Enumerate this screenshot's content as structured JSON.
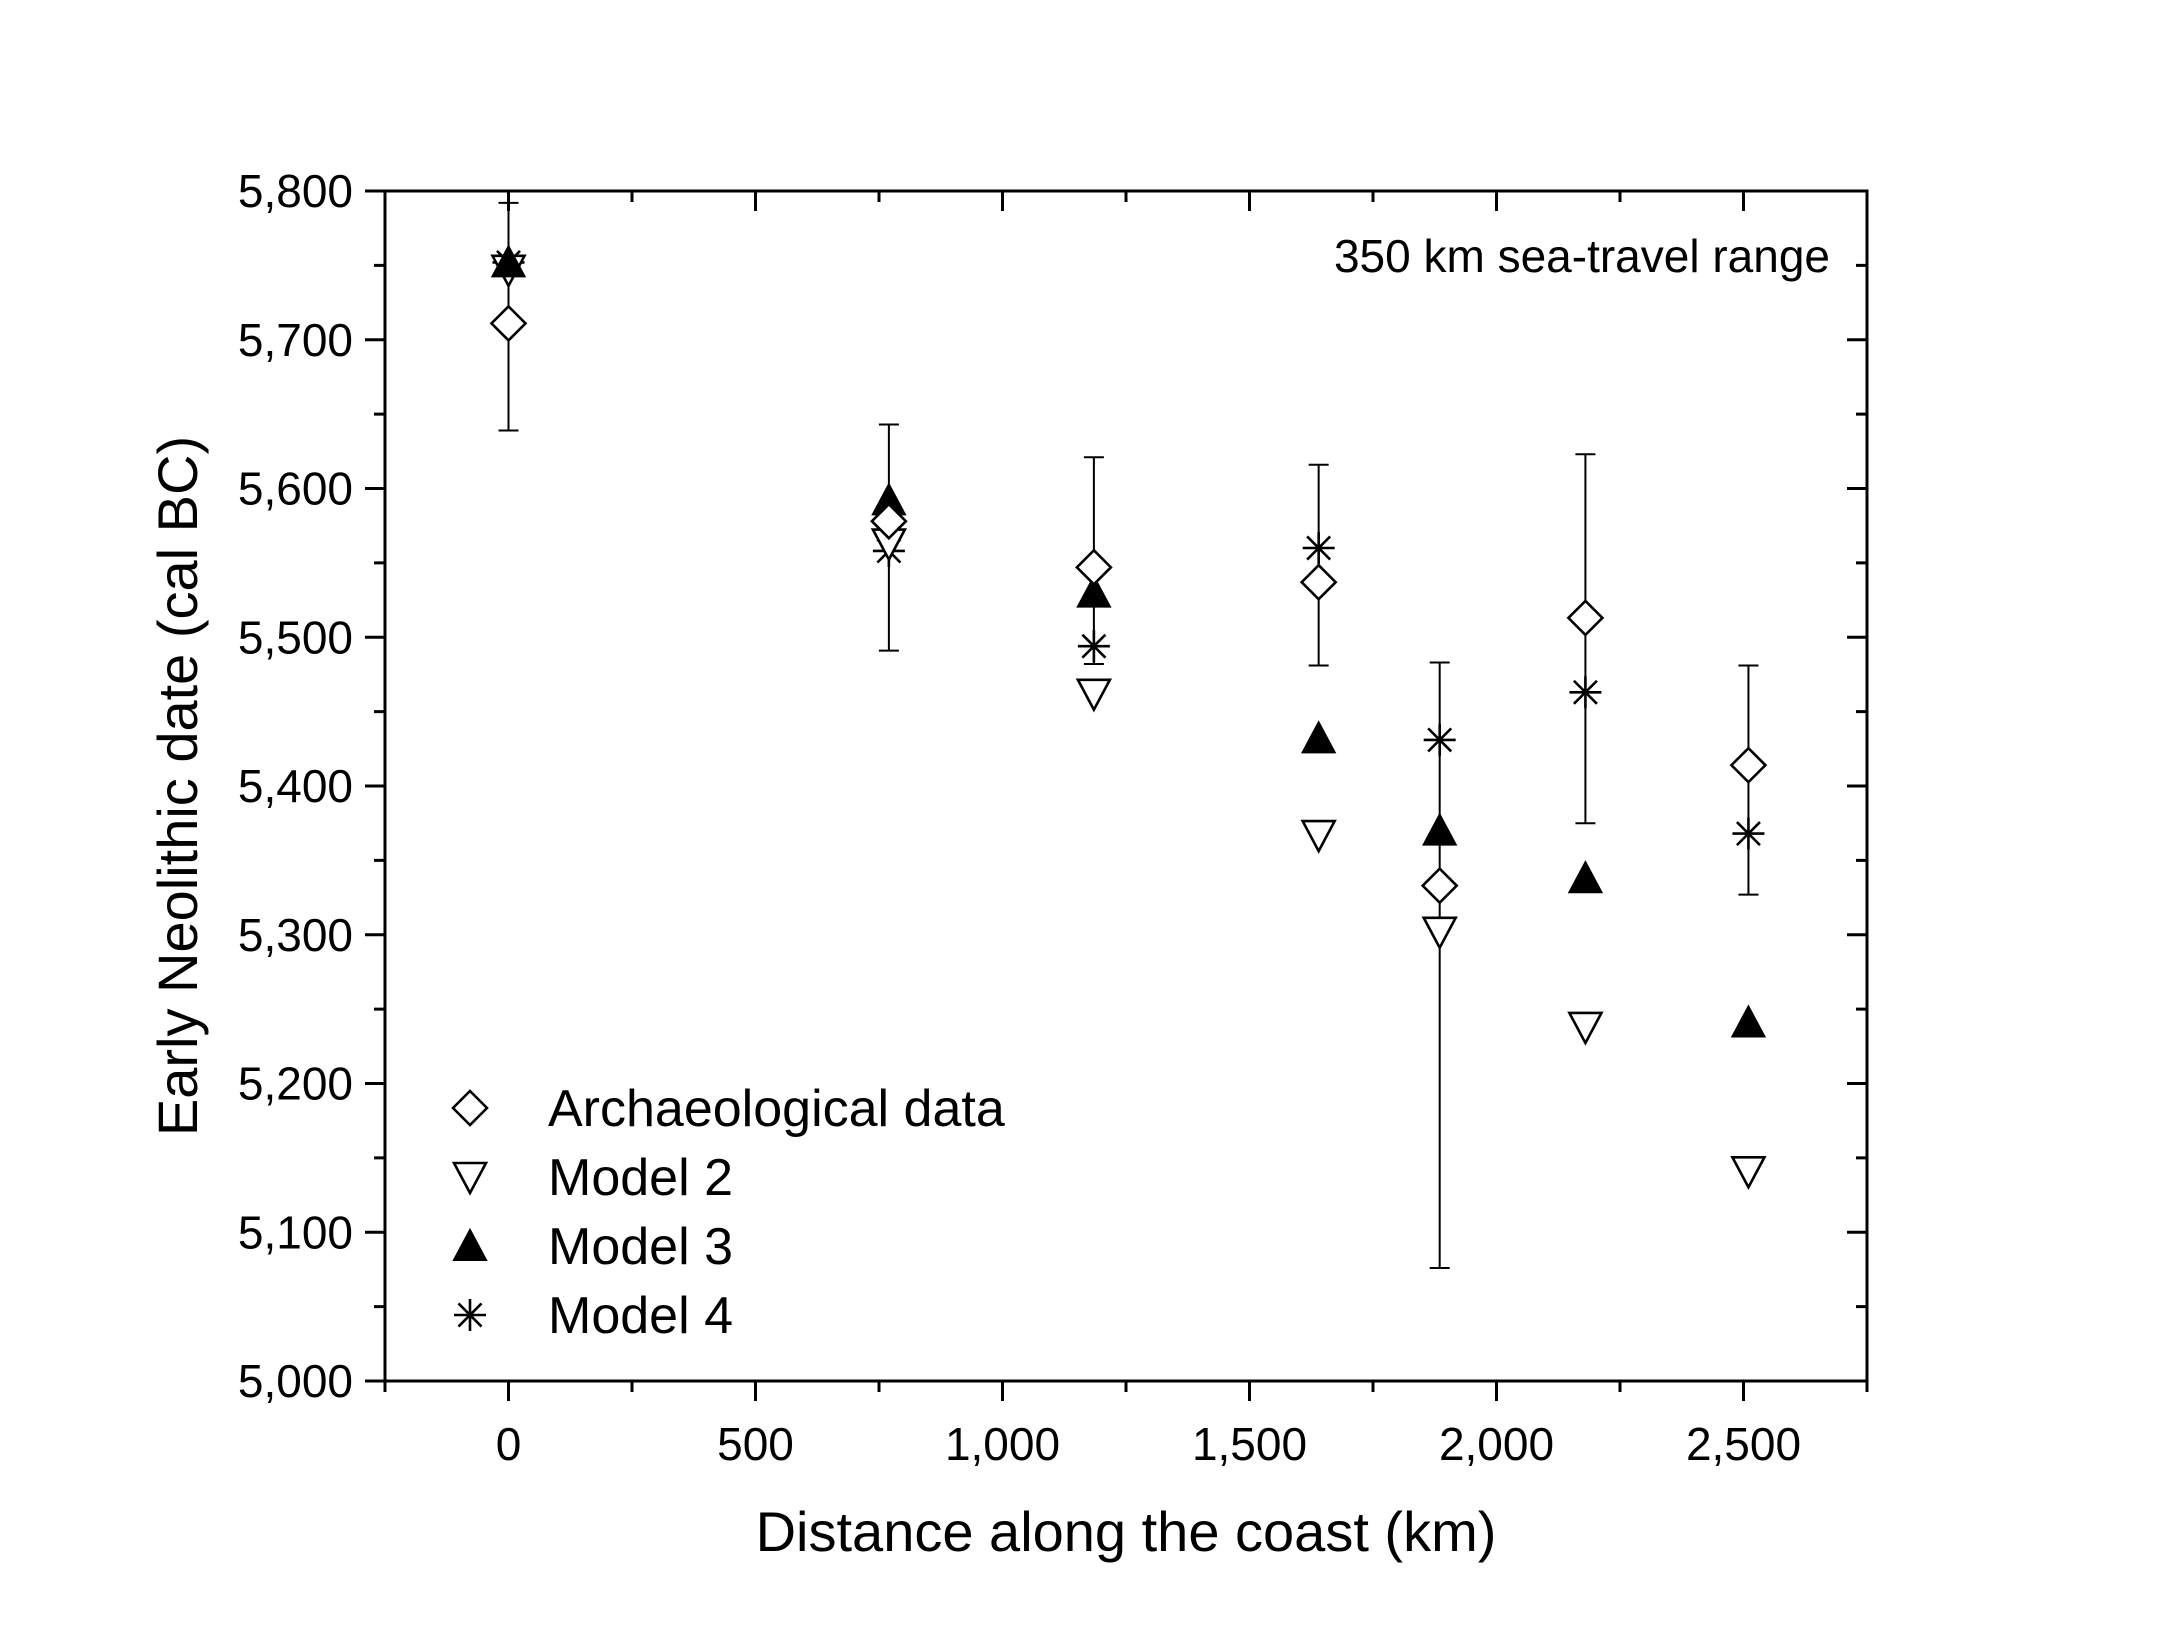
{
  "chart_data": {
    "type": "scatter",
    "title": "",
    "xlabel": "Distance along the coast (km)",
    "ylabel": "Early Neolithic date (cal BC)",
    "xlim": [
      -250,
      2750
    ],
    "ylim": [
      5000,
      5800
    ],
    "x_ticks": [
      0,
      500,
      1000,
      1500,
      2000,
      2500
    ],
    "x_tick_labels": [
      "0",
      "500",
      "1,000",
      "1,500",
      "2,000",
      "2,500"
    ],
    "y_ticks": [
      5000,
      5100,
      5200,
      5300,
      5400,
      5500,
      5600,
      5700,
      5800
    ],
    "y_tick_labels": [
      "5,000",
      "5,100",
      "5,200",
      "5,300",
      "5,400",
      "5,500",
      "5,600",
      "5,700",
      "5,800"
    ],
    "grid": false,
    "legend_position": "bottom-left",
    "annotation": "350 km sea-travel range",
    "series": [
      {
        "name": "Archaeological data",
        "marker": "diamond-open",
        "x": [
          0,
          770,
          1185,
          1640,
          1885,
          2180,
          2510
        ],
        "y": [
          5711,
          5578,
          5547,
          5537,
          5333,
          5513,
          5414
        ],
        "error_low": [
          5639,
          5491,
          5482,
          5481,
          5076,
          5375,
          5327
        ],
        "error_high": [
          5792,
          5643,
          5621,
          5616,
          5483,
          5623,
          5481
        ]
      },
      {
        "name": "Model 2",
        "marker": "triangle-down-open",
        "x": [
          0,
          770,
          1185,
          1640,
          1885,
          2180,
          2510
        ],
        "y": [
          5747,
          5563,
          5462,
          5367,
          5302,
          5238,
          5141
        ]
      },
      {
        "name": "Model 3",
        "marker": "triangle-up-filled",
        "x": [
          0,
          770,
          1185,
          1640,
          1885,
          2180,
          2510
        ],
        "y": [
          5752,
          5592,
          5530,
          5432,
          5370,
          5338,
          5241
        ]
      },
      {
        "name": "Model 4",
        "marker": "asterisk",
        "x": [
          0,
          770,
          1185,
          1640,
          1885,
          2180,
          2510
        ],
        "y": [
          5752,
          5558,
          5494,
          5560,
          5431,
          5463,
          5368
        ]
      }
    ]
  }
}
